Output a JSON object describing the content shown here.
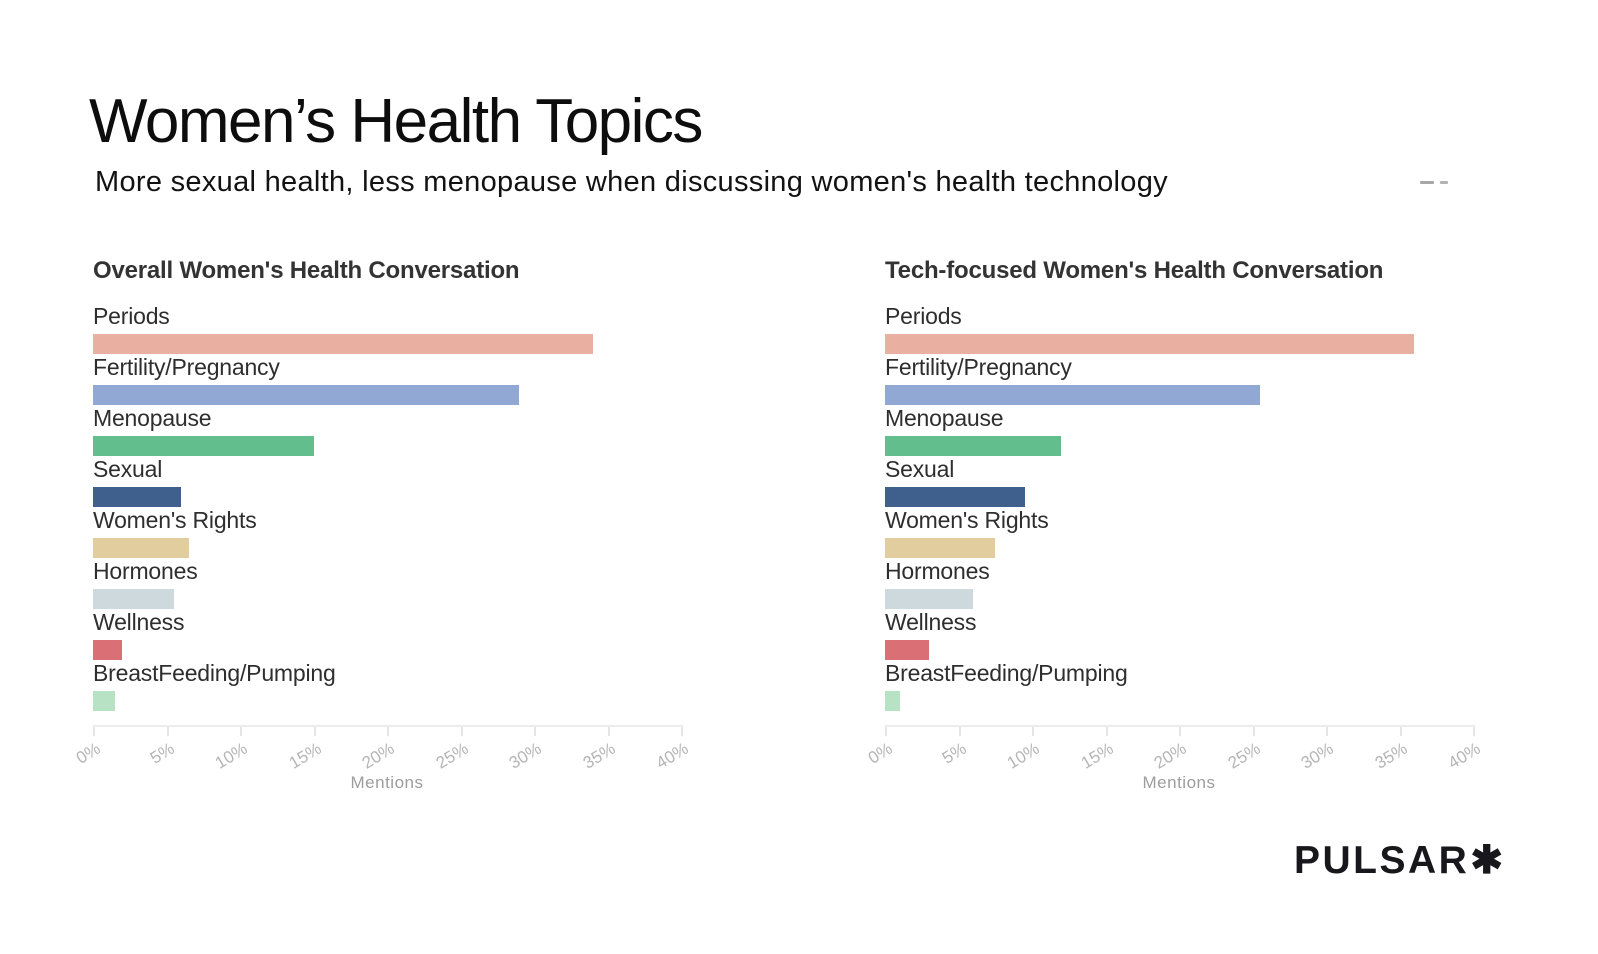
{
  "page": {
    "title": "Women’s Health Topics",
    "subtitle": "More sexual health, less menopause when discussing women's health technology",
    "brand": "PULSAR",
    "brand_mark": "✱"
  },
  "chart_data": {
    "type": "bar",
    "orientation": "horizontal",
    "title": "Women’s Health Topics",
    "subtitle": "More sexual health, less menopause when discussing women's health technology",
    "categories": [
      "Periods",
      "Fertility/Pregnancy",
      "Menopause",
      "Sexual",
      "Women's Rights",
      "Hormones",
      "Wellness",
      "BreastFeeding/Pumping"
    ],
    "series": [
      {
        "name": "Overall Women's Health Conversation",
        "values": [
          34,
          29,
          15,
          6,
          6.5,
          5.5,
          2,
          1.5
        ]
      },
      {
        "name": "Tech-focused Women's Health Conversation",
        "values": [
          36,
          25.5,
          12,
          9.5,
          7.5,
          6,
          3,
          1
        ]
      }
    ],
    "colors": [
      "#E9AFA1",
      "#92A8D4",
      "#63BE8E",
      "#3F608D",
      "#E2CD9F",
      "#CED9DE",
      "#DB6F76",
      "#B7E2C3"
    ],
    "xlabel": "Mentions",
    "x_ticks": [
      "0%",
      "5%",
      "10%",
      "15%",
      "20%",
      "25%",
      "30%",
      "35%",
      "40%"
    ],
    "xlim": [
      0,
      40
    ],
    "unit": "percent of mentions",
    "grid": false,
    "legend": false
  }
}
